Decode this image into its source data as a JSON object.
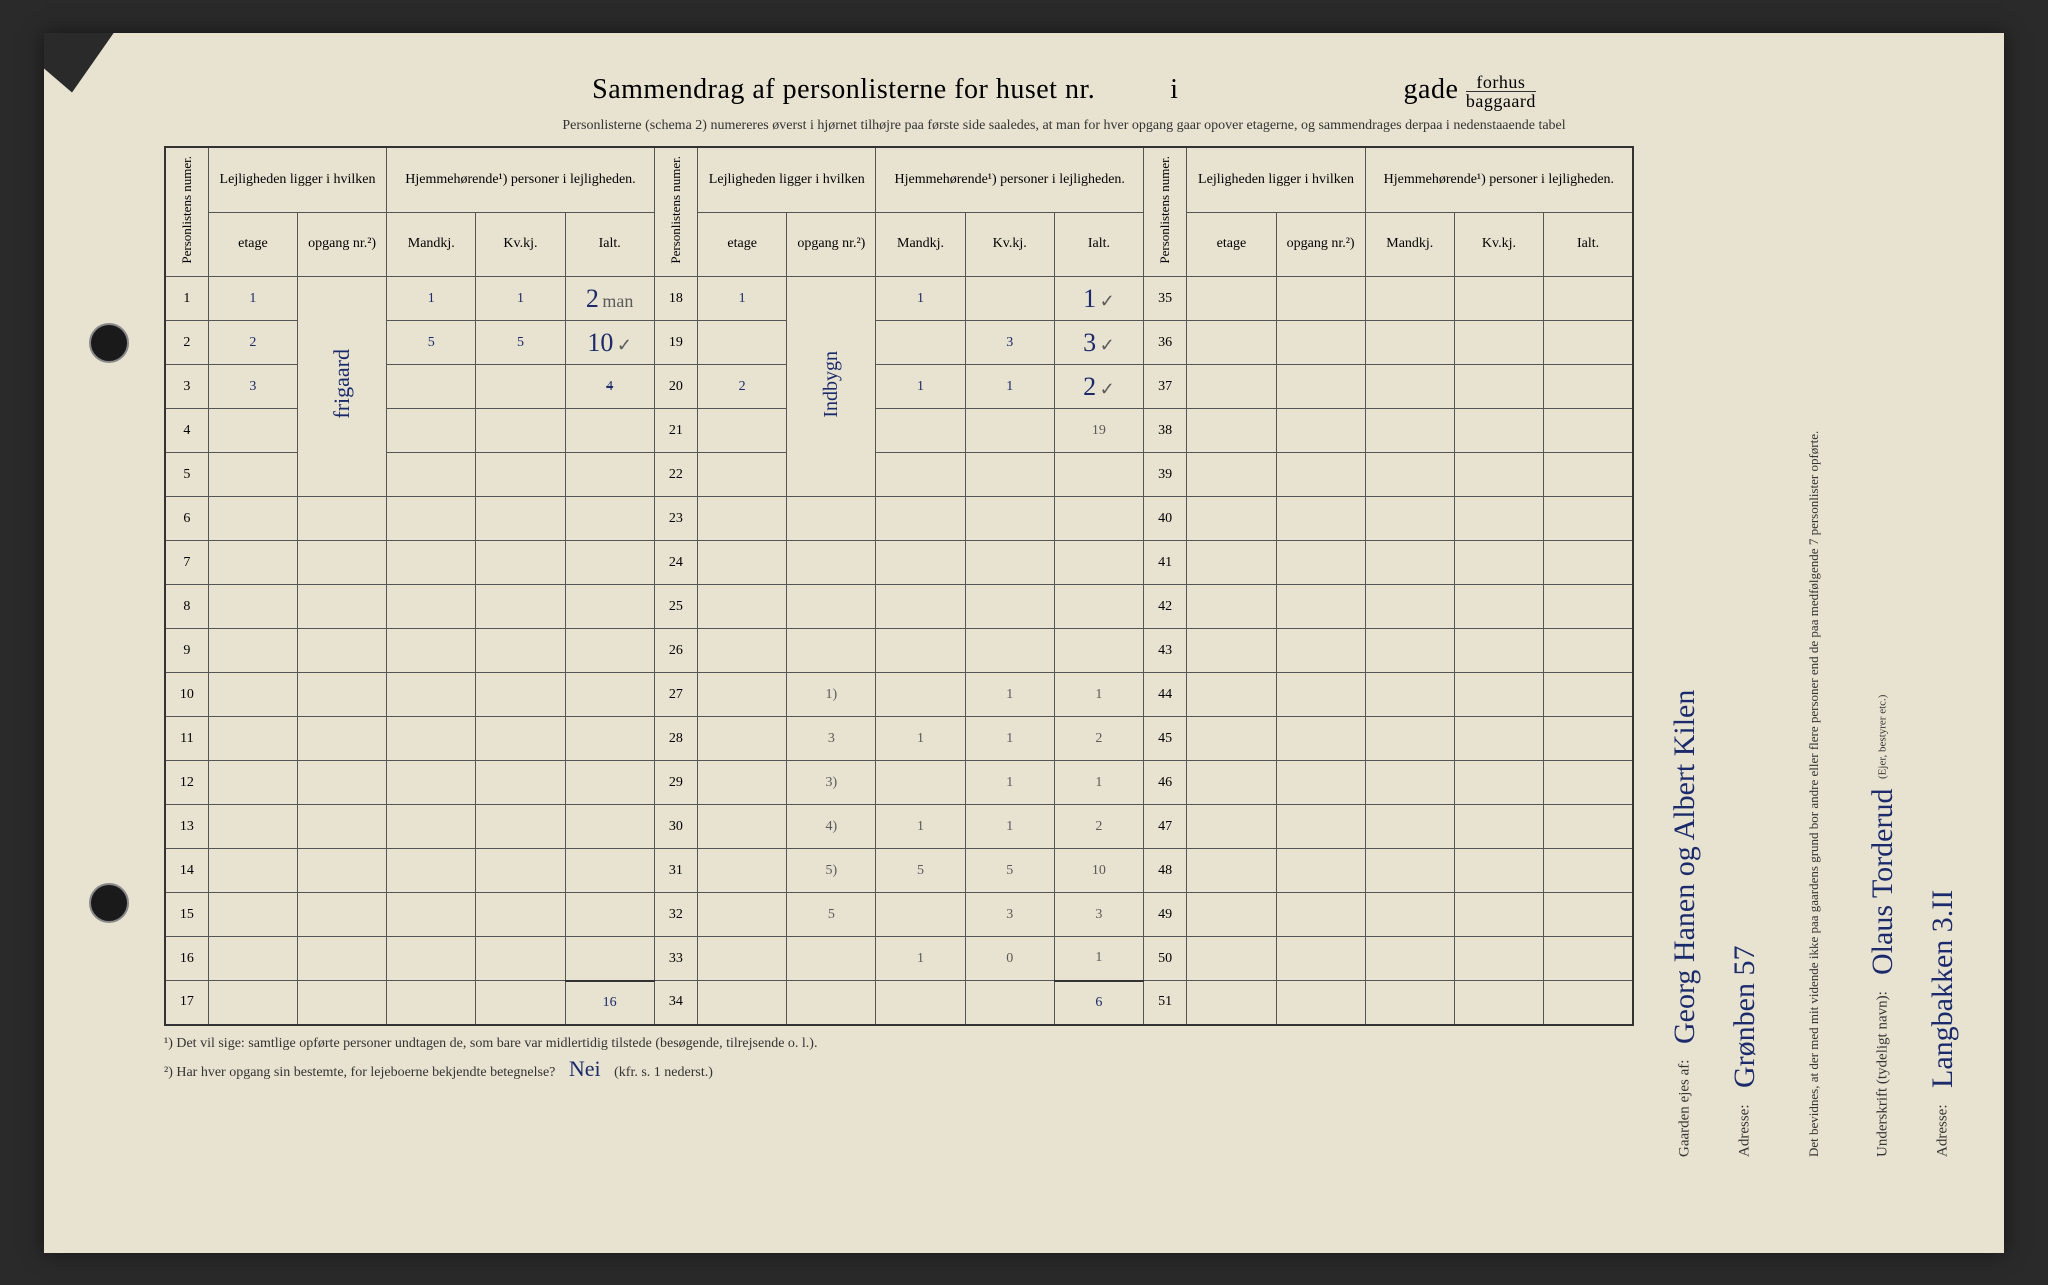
{
  "title": {
    "prefix": "Sammendrag af personlisterne for huset nr.",
    "mid": "i",
    "suffix": "gade",
    "frac_top": "forhus",
    "frac_bottom": "baggaard"
  },
  "subtitle": "Personlisterne (schema 2) numereres øverst i hjørnet tilhøjre paa første side saaledes, at man for hver opgang gaar opover etagerne, og sammendrages derpaa i nedenstaaende tabel",
  "headers": {
    "personlist": "Personlistens numer.",
    "lejlighed": "Lejligheden ligger i hvilken",
    "hjemme": "Hjemmehørende¹) personer i lejligheden.",
    "etage": "etage",
    "opgang": "opgang nr.²)",
    "mandkj": "Mandkj.",
    "kvkj": "Kv.kj.",
    "ialt": "Ialt."
  },
  "row_numbers_a": [
    "1",
    "2",
    "3",
    "4",
    "5",
    "6",
    "7",
    "8",
    "9",
    "10",
    "11",
    "12",
    "13",
    "14",
    "15",
    "16",
    "17"
  ],
  "row_numbers_b": [
    "18",
    "19",
    "20",
    "21",
    "22",
    "23",
    "24",
    "25",
    "26",
    "27",
    "28",
    "29",
    "30",
    "31",
    "32",
    "33",
    "34"
  ],
  "row_numbers_c": [
    "35",
    "36",
    "37",
    "38",
    "39",
    "40",
    "41",
    "42",
    "43",
    "44",
    "45",
    "46",
    "47",
    "48",
    "49",
    "50",
    "51"
  ],
  "block_a": {
    "rows": [
      {
        "etage": "1",
        "opgang": "",
        "mandkj": "1",
        "kvkj": "1",
        "ialt": "2",
        "note": "man"
      },
      {
        "etage": "2",
        "opgang": "",
        "mandkj": "5",
        "kvkj": "5",
        "ialt": "10",
        "note": "✓"
      },
      {
        "etage": "3",
        "opgang": "",
        "mandkj": "",
        "kvkj": "",
        "ialt": "4",
        "strike": true
      },
      {
        "etage": "",
        "opgang": "",
        "mandkj": "",
        "kvkj": "",
        "ialt": ""
      },
      {
        "etage": "",
        "opgang": "",
        "mandkj": "",
        "kvkj": "",
        "ialt": ""
      },
      {
        "etage": "",
        "opgang": "",
        "mandkj": "",
        "kvkj": "",
        "ialt": ""
      },
      {
        "etage": "",
        "opgang": "",
        "mandkj": "",
        "kvkj": "",
        "ialt": ""
      },
      {
        "etage": "",
        "opgang": "",
        "mandkj": "",
        "kvkj": "",
        "ialt": ""
      },
      {
        "etage": "",
        "opgang": "",
        "mandkj": "",
        "kvkj": "",
        "ialt": ""
      },
      {
        "etage": "",
        "opgang": "",
        "mandkj": "",
        "kvkj": "",
        "ialt": ""
      },
      {
        "etage": "",
        "opgang": "",
        "mandkj": "",
        "kvkj": "",
        "ialt": ""
      },
      {
        "etage": "",
        "opgang": "",
        "mandkj": "",
        "kvkj": "",
        "ialt": ""
      },
      {
        "etage": "",
        "opgang": "",
        "mandkj": "",
        "kvkj": "",
        "ialt": ""
      },
      {
        "etage": "",
        "opgang": "",
        "mandkj": "",
        "kvkj": "",
        "ialt": ""
      },
      {
        "etage": "",
        "opgang": "",
        "mandkj": "",
        "kvkj": "",
        "ialt": ""
      },
      {
        "etage": "",
        "opgang": "",
        "mandkj": "",
        "kvkj": "",
        "ialt": ""
      },
      {
        "etage": "",
        "opgang": "",
        "mandkj": "",
        "kvkj": "",
        "ialt": "16",
        "total": true
      }
    ],
    "opgang_note": "frigaard"
  },
  "block_b": {
    "rows": [
      {
        "etage": "1",
        "opgang": "",
        "mandkj": "1",
        "kvkj": "",
        "ialt": "1",
        "note": "✓"
      },
      {
        "etage": "",
        "opgang": "",
        "mandkj": "",
        "kvkj": "3",
        "ialt": "3",
        "note": "✓"
      },
      {
        "etage": "2",
        "opgang": "",
        "mandkj": "1",
        "kvkj": "1",
        "ialt": "2",
        "note": "✓"
      },
      {
        "etage": "",
        "opgang": "",
        "mandkj": "",
        "kvkj": "",
        "ialt": "19",
        "pencil": true
      },
      {
        "etage": "",
        "opgang": "",
        "mandkj": "",
        "kvkj": "",
        "ialt": ""
      },
      {
        "etage": "",
        "opgang": "",
        "mandkj": "",
        "kvkj": "",
        "ialt": ""
      },
      {
        "etage": "",
        "opgang": "",
        "mandkj": "",
        "kvkj": "",
        "ialt": ""
      },
      {
        "etage": "",
        "opgang": "",
        "mandkj": "",
        "kvkj": "",
        "ialt": ""
      },
      {
        "etage": "",
        "opgang": "",
        "mandkj": "",
        "kvkj": "",
        "ialt": ""
      },
      {
        "etage": "",
        "opgang": "1)",
        "mandkj": "",
        "kvkj": "1",
        "ialt": "1",
        "pencil": true
      },
      {
        "etage": "",
        "opgang": "3",
        "mandkj": "1",
        "kvkj": "1",
        "ialt": "2",
        "pencil": true
      },
      {
        "etage": "",
        "opgang": "3)",
        "mandkj": "",
        "kvkj": "1",
        "ialt": "1",
        "pencil": true
      },
      {
        "etage": "",
        "opgang": "4)",
        "mandkj": "1",
        "kvkj": "1",
        "ialt": "2",
        "pencil": true
      },
      {
        "etage": "",
        "opgang": "5)",
        "mandkj": "5",
        "kvkj": "5",
        "ialt": "10",
        "pencil": true
      },
      {
        "etage": "",
        "opgang": "5",
        "mandkj": "",
        "kvkj": "3",
        "ialt": "3",
        "pencil": true
      },
      {
        "etage": "",
        "opgang": "",
        "mandkj": "1",
        "kvkj": "0",
        "ialt": "1",
        "pencil": true
      },
      {
        "etage": "",
        "opgang": "",
        "mandkj": "",
        "kvkj": "",
        "ialt": "6",
        "total": true
      }
    ],
    "opgang_note": "Indbygn"
  },
  "footnotes": {
    "f1": "¹) Det vil sige: samtlige opførte personer undtagen de, som bare var midlertidig tilstede (besøgende, tilrejsende o. l.).",
    "f2_label": "²) Har hver opgang sin bestemte, for lejeboerne bekjendte betegnelse?",
    "f2_answer": "Nei",
    "f2_ref": "(kfr. s. 1 nederst.)"
  },
  "right": {
    "gaarden_label": "Gaarden ejes af:",
    "gaarden_name": "Georg Hanen og Albert Kilen",
    "gaarden_addr_label": "Adresse:",
    "gaarden_addr": "Grønben 57",
    "bevidnes": "Det bevidnes, at der med mit vidende ikke paa gaardens grund bor andre eller flere personer end de paa medfølgende 7 personlister opførte.",
    "underskrift_label": "Underskrift (tydeligt navn):",
    "underskrift_name": "Olaus Torderud",
    "underskrift_sub": "(Ejer, bestyrer etc.)",
    "addr2_label": "Adresse:",
    "addr2": "Langbakken 3.II"
  },
  "colors": {
    "paper": "#e8e2d0",
    "ink_print": "#333333",
    "ink_blue": "#1a2a6b",
    "ink_pencil": "#5a5a5a"
  }
}
